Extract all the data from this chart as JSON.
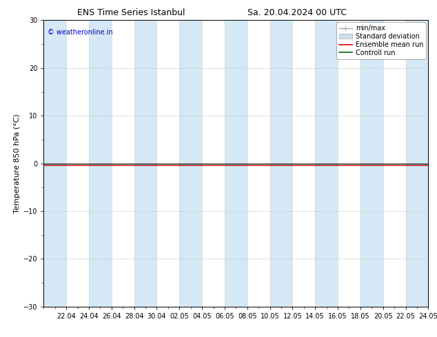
{
  "title_left": "ENS Time Series Istanbul",
  "title_right": "Sa. 20.04.2024 00 UTC",
  "ylabel": "Temperature 850 hPa (°C)",
  "watermark": "© weatheronline.in",
  "ylim": [
    -30,
    30
  ],
  "yticks": [
    -30,
    -20,
    -10,
    0,
    10,
    20,
    30
  ],
  "x_labels": [
    "22.04",
    "24.04",
    "26.04",
    "28.04",
    "30.04",
    "02.05",
    "04.05",
    "06.05",
    "08.05",
    "10.05",
    "12.05",
    "14.05",
    "16.05",
    "18.05",
    "20.05",
    "22.05",
    "24.05"
  ],
  "num_days": 34,
  "bg_color": "#ffffff",
  "band_color": "#d4e8f5",
  "control_run_value": -0.3,
  "ensemble_mean_value": -0.3,
  "legend_labels": [
    "min/max",
    "Standard deviation",
    "Ensemble mean run",
    "Controll run"
  ],
  "legend_line_color": "#aaaaaa",
  "legend_std_color": "#c8dff0",
  "legend_ens_color": "#dd0000",
  "legend_ctrl_color": "#006600",
  "axhline_color": "#000000",
  "title_fontsize": 9,
  "axis_label_fontsize": 8,
  "tick_fontsize": 7,
  "watermark_fontsize": 7,
  "legend_fontsize": 7
}
